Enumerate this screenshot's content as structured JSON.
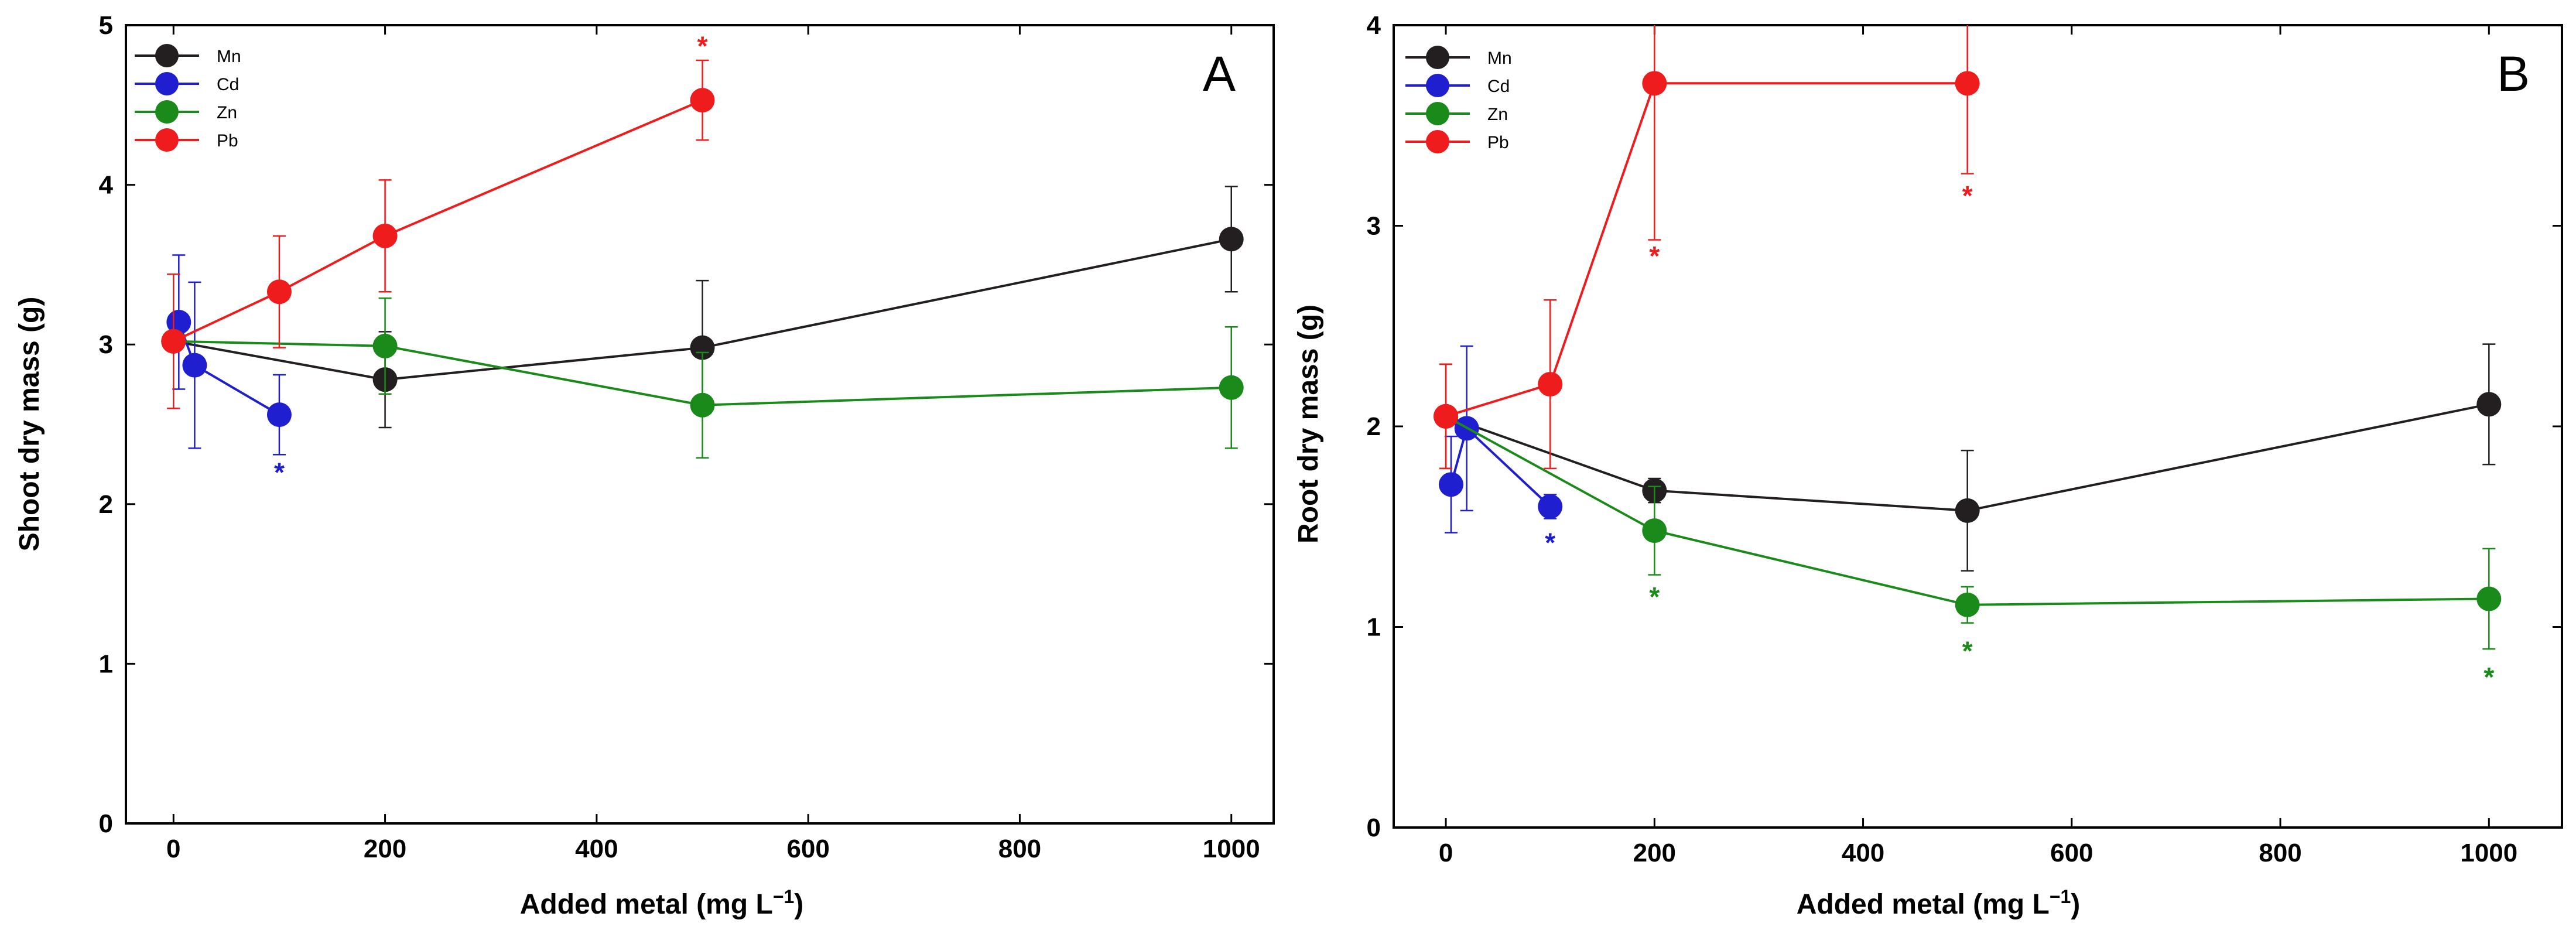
{
  "chart_data": [
    {
      "type": "line",
      "panel": "A",
      "xlabel": "Added metal (mg L",
      "xlabel_sup": "−1",
      "xlabel_close": ")",
      "ylabel": "Shoot dry mass (g)",
      "xlim": [
        -45,
        1040
      ],
      "ylim": [
        0,
        5
      ],
      "xticks": [
        0,
        200,
        400,
        600,
        800,
        1000
      ],
      "yticks": [
        0,
        1,
        2,
        3,
        4,
        5
      ],
      "legend_position": "top-left",
      "series": [
        {
          "name": "Mn",
          "color": "#231f20",
          "x": [
            0,
            200,
            500,
            1000
          ],
          "y": [
            3.02,
            2.78,
            2.98,
            3.66
          ],
          "err": [
            0.42,
            0.3,
            0.42,
            0.33
          ],
          "sig": []
        },
        {
          "name": "Cd",
          "color": "#1f1fd0",
          "x": [
            5,
            20,
            100
          ],
          "y": [
            3.14,
            2.87,
            2.56
          ],
          "err": [
            0.42,
            0.52,
            0.25
          ],
          "sig": [
            {
              "x": 100,
              "y": 2.2
            }
          ]
        },
        {
          "name": "Zn",
          "color": "#1a8a1a",
          "x": [
            0,
            200,
            500,
            1000
          ],
          "y": [
            3.02,
            2.99,
            2.62,
            2.73
          ],
          "err": [
            0.42,
            0.3,
            0.33,
            0.38
          ],
          "sig": []
        },
        {
          "name": "Pb",
          "color": "#ee1c1c",
          "x": [
            0,
            100,
            200,
            500
          ],
          "y": [
            3.02,
            3.33,
            3.68,
            4.53
          ],
          "err": [
            0.42,
            0.35,
            0.35,
            0.25
          ],
          "sig": [
            {
              "x": 500,
              "y": 4.87
            }
          ]
        }
      ]
    },
    {
      "type": "line",
      "panel": "B",
      "xlabel": "Added metal (mg L",
      "xlabel_sup": "−1",
      "xlabel_close": ")",
      "ylabel": "Root dry mass (g)",
      "xlim": [
        -50,
        1070
      ],
      "ylim": [
        0,
        4
      ],
      "xticks": [
        0,
        200,
        400,
        600,
        800,
        1000
      ],
      "yticks": [
        0,
        1,
        2,
        3,
        4
      ],
      "legend_position": "top-left",
      "series": [
        {
          "name": "Mn",
          "color": "#231f20",
          "x": [
            0,
            200,
            500,
            1000
          ],
          "y": [
            2.05,
            1.68,
            1.58,
            2.11
          ],
          "err": [
            0.26,
            0.06,
            0.3,
            0.3
          ],
          "sig": []
        },
        {
          "name": "Cd",
          "color": "#1f1fd0",
          "x": [
            5,
            20,
            100
          ],
          "y": [
            1.71,
            1.99,
            1.6
          ],
          "err": [
            0.24,
            0.41,
            0.06
          ],
          "sig": [
            {
              "x": 100,
              "y": 1.42
            }
          ]
        },
        {
          "name": "Zn",
          "color": "#1a8a1a",
          "x": [
            0,
            200,
            500,
            1000
          ],
          "y": [
            2.05,
            1.48,
            1.11,
            1.14
          ],
          "err": [
            0.26,
            0.22,
            0.09,
            0.25
          ],
          "sig": [
            {
              "x": 200,
              "y": 1.15
            },
            {
              "x": 500,
              "y": 0.88
            },
            {
              "x": 1000,
              "y": 0.75
            }
          ]
        },
        {
          "name": "Pb",
          "color": "#ee1c1c",
          "x": [
            0,
            100,
            200,
            500
          ],
          "y": [
            2.05,
            2.21,
            3.71,
            3.71
          ],
          "err": [
            0.26,
            0.42,
            0.78,
            0.45
          ],
          "sig": [
            {
              "x": 200,
              "y": 2.85
            },
            {
              "x": 500,
              "y": 3.15
            }
          ]
        }
      ]
    }
  ]
}
